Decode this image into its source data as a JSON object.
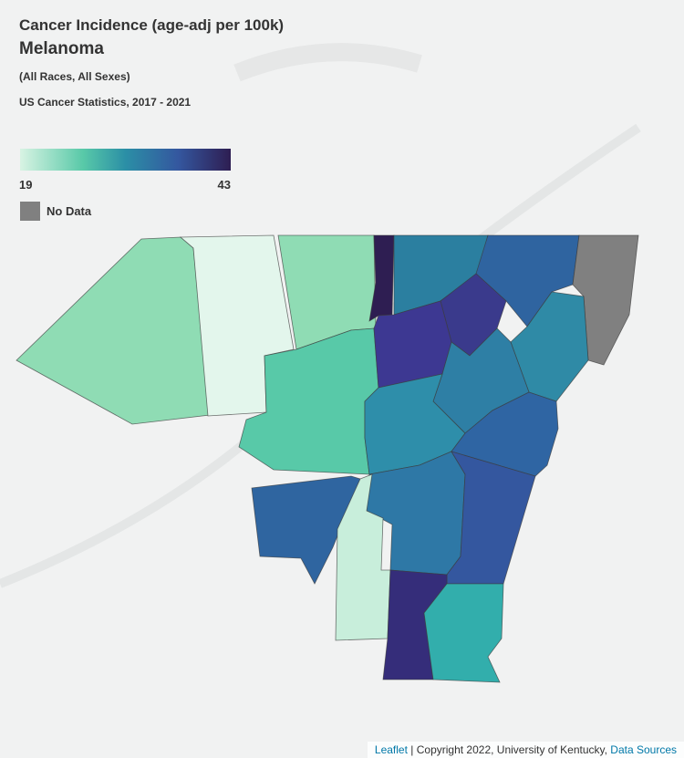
{
  "title": "Cancer Incidence (age-adj per 100k)",
  "subtitle": "Melanoma",
  "filter": "(All Races, All Sexes)",
  "source": "US Cancer Statistics, 2017 - 2021",
  "legend": {
    "min": 19,
    "max": 43,
    "no_data": "No Data"
  },
  "attribution": {
    "leaflet": "Leaflet",
    "copyright": "| Copyright 2022, University of Kentucky,",
    "data_sources": "Data Sources"
  }
}
